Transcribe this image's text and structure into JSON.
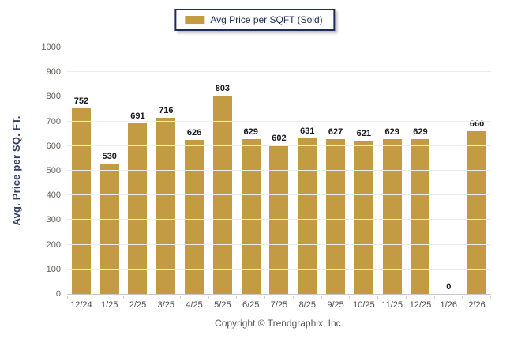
{
  "legend": {
    "label": "Avg Price per SQFT (Sold)"
  },
  "footer": {
    "copyright": "Copyright © Trendgraphix, Inc."
  },
  "colors": {
    "bar": "#C39B42",
    "legend_border": "#1F2D54",
    "gridline": "#ececec",
    "axis_line": "#c9c9c9",
    "value_label": "#17171C",
    "y_axis_title": "#333F63"
  },
  "chart_data": {
    "type": "bar",
    "title": "",
    "series_name": "Avg Price per SQFT (Sold)",
    "categories": [
      "12/24",
      "1/25",
      "2/25",
      "3/25",
      "4/25",
      "5/25",
      "6/25",
      "7/25",
      "8/25",
      "9/25",
      "10/25",
      "11/25",
      "12/25",
      "1/26",
      "2/26"
    ],
    "values": [
      752,
      530,
      691,
      716,
      626,
      803,
      629,
      602,
      631,
      627,
      621,
      629,
      629,
      0,
      660
    ],
    "xlabel": "",
    "ylabel": "Avg. Price per SQ. FT.",
    "ylim": [
      0,
      1000
    ],
    "yticks": [
      0,
      100,
      200,
      300,
      400,
      500,
      600,
      700,
      800,
      900,
      1000
    ],
    "grid": true,
    "bar_color": "#C39B42",
    "legend_position": "top-center",
    "value_labels_shown": true
  }
}
